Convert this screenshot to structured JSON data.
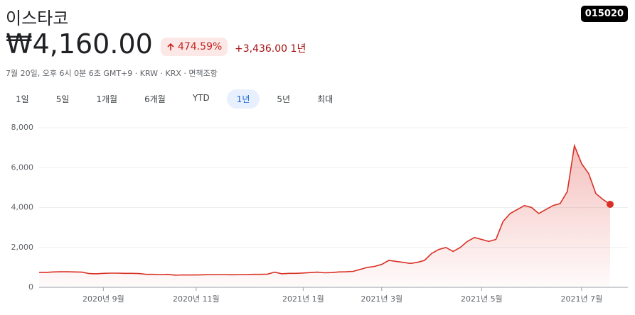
{
  "header": {
    "title": "이스타코",
    "ticker": "015020"
  },
  "quote": {
    "price": "₩4,160.00",
    "change_percent": "474.59%",
    "change": "+3,436.00",
    "period": "1년",
    "info": "7월 20일, 오후 6시 0분 6초 GMT+9 · KRW · KRX · 면책조항"
  },
  "ranges": [
    "1일",
    "5일",
    "1개월",
    "6개월",
    "YTD",
    "1년",
    "5년",
    "최대"
  ],
  "chart_data": {
    "type": "line",
    "color": "#d93025",
    "grid": true,
    "categories": [
      null,
      null,
      null,
      null,
      null,
      null,
      null,
      null,
      null,
      "2020년 9월",
      null,
      null,
      null,
      null,
      null,
      null,
      null,
      null,
      null,
      null,
      null,
      null,
      "2020년 11월",
      null,
      null,
      null,
      null,
      null,
      null,
      null,
      null,
      null,
      null,
      null,
      null,
      null,
      null,
      "2021년 1월",
      null,
      null,
      null,
      null,
      null,
      null,
      null,
      null,
      null,
      null,
      "2021년 3월",
      null,
      null,
      null,
      null,
      null,
      null,
      null,
      null,
      null,
      null,
      null,
      null,
      null,
      "2021년 5월",
      null,
      null,
      null,
      null,
      null,
      null,
      null,
      null,
      null,
      null,
      null,
      null,
      null,
      "2021년 7월",
      null,
      null,
      null,
      null
    ],
    "values": [
      750,
      750,
      770,
      780,
      780,
      770,
      760,
      690,
      680,
      700,
      710,
      710,
      700,
      700,
      690,
      650,
      650,
      640,
      650,
      610,
      620,
      620,
      620,
      630,
      640,
      640,
      640,
      630,
      640,
      640,
      650,
      650,
      660,
      760,
      680,
      700,
      700,
      720,
      740,
      760,
      730,
      740,
      770,
      780,
      800,
      900,
      1000,
      1050,
      1150,
      1350,
      1300,
      1250,
      1200,
      1250,
      1350,
      1700,
      1900,
      2000,
      1800,
      2000,
      2300,
      2500,
      2400,
      2300,
      2400,
      3300,
      3700,
      3900,
      4100,
      4000,
      3700,
      3900,
      4100,
      4200,
      4800,
      7100,
      6200,
      5700,
      4700,
      4400,
      4160
    ],
    "ylim": [
      0,
      8000
    ],
    "yticks": [
      0,
      {
        "value": 2000,
        "label": "2,000"
      },
      {
        "value": 4000,
        "label": "4,000"
      },
      {
        "value": 6000,
        "label": "6,000"
      },
      {
        "value": 8000,
        "label": "8,000"
      }
    ]
  }
}
